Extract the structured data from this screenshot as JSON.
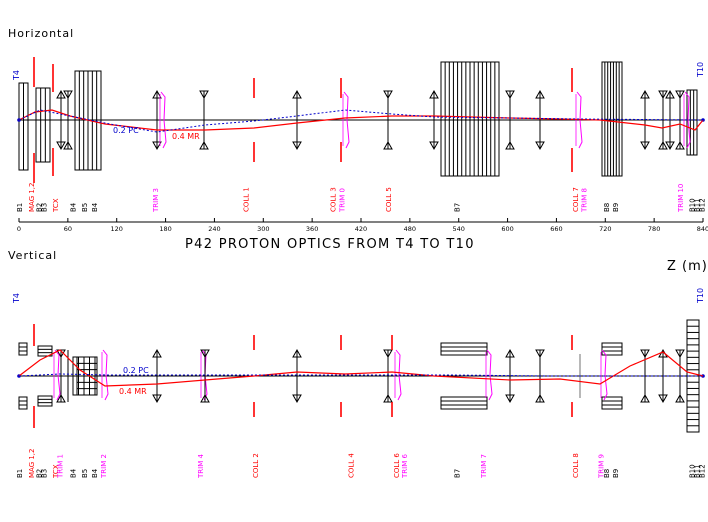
{
  "headings": {
    "horizontal": "Horizontal",
    "vertical": "Vertical",
    "title": "P42 PROTON OPTICS FROM T4 TO T10",
    "z_unit": "Z (m)"
  },
  "axis": {
    "ticks": [
      "0",
      "60",
      "120",
      "180",
      "240",
      "300",
      "360",
      "420",
      "480",
      "540",
      "600",
      "660",
      "720",
      "780",
      "840"
    ]
  },
  "horizontal_panel": {
    "target_left": "T4",
    "target_right": "T10",
    "curve_labels": {
      "blue": "0.2 PC",
      "red": "0.4 MR"
    },
    "element_labels": [
      {
        "text": "B1",
        "color": "#000000",
        "z": 0
      },
      {
        "text": "MAG 1,2",
        "color": "#ff0000",
        "z": 15
      },
      {
        "text": "B2",
        "color": "#000000",
        "z": 24
      },
      {
        "text": "B3",
        "color": "#000000",
        "z": 30
      },
      {
        "text": "TCX",
        "color": "#ff0000",
        "z": 44
      },
      {
        "text": "B4",
        "color": "#000000",
        "z": 66
      },
      {
        "text": "B5",
        "color": "#000000",
        "z": 80
      },
      {
        "text": "B4",
        "color": "#000000",
        "z": 92
      },
      {
        "text": "TRIM 3",
        "color": "#ff00ff",
        "z": 167
      },
      {
        "text": "COLL 1",
        "color": "#ff0000",
        "z": 278
      },
      {
        "text": "COLL 3",
        "color": "#ff0000",
        "z": 385
      },
      {
        "text": "TRIM 0",
        "color": "#ff00ff",
        "z": 396
      },
      {
        "text": "COLL 5",
        "color": "#ff0000",
        "z": 453
      },
      {
        "text": "B7",
        "color": "#000000",
        "z": 537
      },
      {
        "text": "COLL 7",
        "color": "#ff0000",
        "z": 683
      },
      {
        "text": "TRIM 8",
        "color": "#ff00ff",
        "z": 693
      },
      {
        "text": "B8",
        "color": "#000000",
        "z": 721
      },
      {
        "text": "B9",
        "color": "#000000",
        "z": 732
      },
      {
        "text": "TRIM 10",
        "color": "#ff00ff",
        "z": 812
      },
      {
        "text": "B10",
        "color": "#000000",
        "z": 826
      },
      {
        "text": "B11",
        "color": "#000000",
        "z": 832
      },
      {
        "text": "B12",
        "color": "#000000",
        "z": 838
      }
    ]
  },
  "vertical_panel": {
    "target_left": "T4",
    "target_right": "T10",
    "curve_labels": {
      "blue": "0.2 PC",
      "red": "0.4 MR"
    },
    "element_labels": [
      {
        "text": "B1",
        "color": "#000000",
        "z": 0
      },
      {
        "text": "MAG 1,2",
        "color": "#ff0000",
        "z": 15
      },
      {
        "text": "B2",
        "color": "#000000",
        "z": 24
      },
      {
        "text": "B3",
        "color": "#000000",
        "z": 30
      },
      {
        "text": "TCX",
        "color": "#ff0000",
        "z": 44
      },
      {
        "text": "TRIM 1",
        "color": "#ff00ff",
        "z": 50
      },
      {
        "text": "B4",
        "color": "#000000",
        "z": 66
      },
      {
        "text": "B5",
        "color": "#000000",
        "z": 80
      },
      {
        "text": "B4",
        "color": "#000000",
        "z": 92
      },
      {
        "text": "TRIM 2",
        "color": "#ff00ff",
        "z": 103
      },
      {
        "text": "TRIM 4",
        "color": "#ff00ff",
        "z": 222
      },
      {
        "text": "COLL 2",
        "color": "#ff0000",
        "z": 290
      },
      {
        "text": "COLL 4",
        "color": "#ff0000",
        "z": 407
      },
      {
        "text": "COLL 6",
        "color": "#ff0000",
        "z": 463
      },
      {
        "text": "TRIM 6",
        "color": "#ff00ff",
        "z": 473
      },
      {
        "text": "B7",
        "color": "#000000",
        "z": 537
      },
      {
        "text": "TRIM 7",
        "color": "#ff00ff",
        "z": 570
      },
      {
        "text": "COLL 8",
        "color": "#ff0000",
        "z": 683
      },
      {
        "text": "TRIM 9",
        "color": "#ff00ff",
        "z": 714
      },
      {
        "text": "B8",
        "color": "#000000",
        "z": 721
      },
      {
        "text": "B9",
        "color": "#000000",
        "z": 732
      },
      {
        "text": "B10",
        "color": "#000000",
        "z": 826
      },
      {
        "text": "B11",
        "color": "#000000",
        "z": 832
      },
      {
        "text": "B12",
        "color": "#000000",
        "z": 838
      }
    ]
  },
  "colors": {
    "dipole": "#000000",
    "collimator": "#ff0000",
    "trim": "#ff00ff",
    "blue_curve": "#0000cc",
    "red_curve": "#ff0000",
    "target": "#0000cc"
  }
}
